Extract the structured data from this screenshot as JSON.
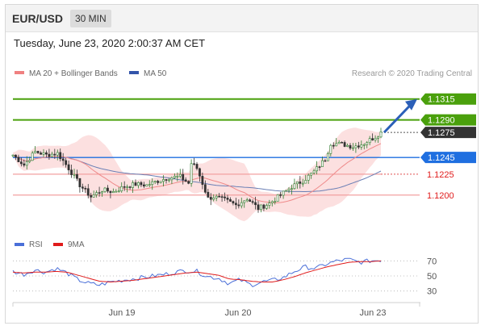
{
  "header": {
    "symbol": "EUR/USD",
    "timeframe": "30 MIN"
  },
  "datetime": "Tuesday, June 23, 2020 2:00:37 AM CET",
  "legend_main": [
    {
      "label": "MA 20 + Bollinger Bands",
      "color": "#f08080"
    },
    {
      "label": "MA 50",
      "color": "#3355aa"
    }
  ],
  "credit": "Research © 2020 Trading Central",
  "legend_rsi": [
    {
      "label": "RSI",
      "color": "#4a6fd8"
    },
    {
      "label": "9MA",
      "color": "#e01b1b"
    }
  ],
  "chart_data": [
    {
      "type": "candlestick",
      "title": "EUR/USD",
      "timeframe": "30 MIN",
      "x_ticks": [
        "Jun 19",
        "Jun 20",
        "Jun 23"
      ],
      "ylim": [
        1.1165,
        1.1335
      ],
      "levels": [
        {
          "value": 1.1315,
          "label": "1.1315",
          "kind": "target",
          "color": "#4aa00c"
        },
        {
          "value": 1.129,
          "label": "1.1290",
          "kind": "target",
          "color": "#4aa00c"
        },
        {
          "value": 1.1275,
          "label": "1.1275",
          "kind": "last-price",
          "color": "#333333"
        },
        {
          "value": 1.1245,
          "label": "1.1245",
          "kind": "pivot",
          "color": "#1f6fe0"
        },
        {
          "value": 1.1225,
          "label": "1.1225",
          "kind": "support",
          "color": "#e01b1b"
        },
        {
          "value": 1.12,
          "label": "1.1200",
          "kind": "support",
          "color": "#e01b1b"
        }
      ],
      "close_path": [
        [
          0,
          1.1248
        ],
        [
          4,
          1.1236
        ],
        [
          8,
          1.1252
        ],
        [
          12,
          1.1248
        ],
        [
          16,
          1.125
        ],
        [
          20,
          1.1232
        ],
        [
          24,
          1.1212
        ],
        [
          28,
          1.1198
        ],
        [
          32,
          1.1206
        ],
        [
          36,
          1.1204
        ],
        [
          40,
          1.121
        ],
        [
          44,
          1.1213
        ],
        [
          48,
          1.1212
        ],
        [
          52,
          1.1217
        ],
        [
          56,
          1.1221
        ],
        [
          60,
          1.1222
        ],
        [
          63,
          1.1214
        ],
        [
          64,
          1.1238
        ],
        [
          66,
          1.1232
        ],
        [
          70,
          1.1196
        ],
        [
          72,
          1.1198
        ],
        [
          76,
          1.1194
        ],
        [
          80,
          1.1188
        ],
        [
          84,
          1.1196
        ],
        [
          88,
          1.1184
        ],
        [
          92,
          1.119
        ],
        [
          96,
          1.12
        ],
        [
          100,
          1.121
        ],
        [
          104,
          1.1217
        ],
        [
          108,
          1.1228
        ],
        [
          112,
          1.1243
        ],
        [
          114,
          1.1262
        ],
        [
          118,
          1.1261
        ],
        [
          122,
          1.1258
        ],
        [
          126,
          1.1262
        ],
        [
          130,
          1.127
        ],
        [
          132,
          1.1275
        ]
      ],
      "series": [
        {
          "name": "MA 20 + Bollinger Bands",
          "type": "line+band"
        },
        {
          "name": "MA 50",
          "type": "line"
        }
      ],
      "annotation": {
        "type": "arrow",
        "direction": "up",
        "target": 1.1315
      }
    },
    {
      "type": "line",
      "title": "RSI",
      "yticks": [
        70,
        50,
        30
      ],
      "ylim": [
        20,
        80
      ],
      "series": [
        {
          "name": "RSI",
          "values": [
            56,
            52,
            58,
            55,
            60,
            54,
            45,
            40,
            38,
            42,
            44,
            46,
            48,
            50,
            52,
            55,
            57,
            56,
            49,
            47,
            40,
            45,
            38,
            42,
            44,
            48,
            56,
            62,
            60,
            66,
            70,
            72,
            68,
            70,
            71
          ]
        },
        {
          "name": "9MA",
          "values": [
            55,
            54,
            55,
            55,
            56,
            55,
            51,
            47,
            43,
            42,
            43,
            44,
            46,
            48,
            50,
            52,
            54,
            55,
            53,
            51,
            46,
            45,
            43,
            42,
            42,
            45,
            49,
            54,
            58,
            62,
            65,
            68,
            69,
            69,
            70
          ]
        }
      ]
    }
  ]
}
